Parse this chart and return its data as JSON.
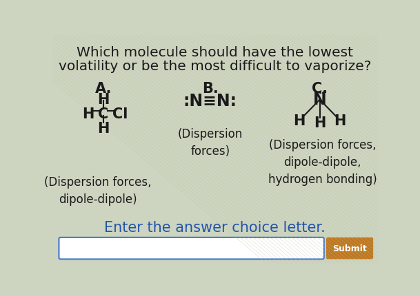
{
  "title_line1": "Which molecule should have the lowest",
  "title_line2": "volatility or be the most difficult to vaporize?",
  "bg_color": "#cdd4c0",
  "text_color": "#1a1a1a",
  "forces_A": "(Dispersion forces,\ndipole-dipole)",
  "forces_B": "(Dispersion\nforces)",
  "forces_C": "(Dispersion forces,\ndipole-dipole,\nhydrogen bonding)",
  "footer": "Enter the answer choice letter.",
  "footer_color": "#2255aa",
  "submit_color": "#c07820",
  "submit_text": "Submit",
  "input_border": "#4477cc",
  "title_fontsize": 14.5,
  "body_fontsize": 12,
  "mol_fontsize": 15,
  "label_fontsize": 15,
  "footer_fontsize": 15
}
